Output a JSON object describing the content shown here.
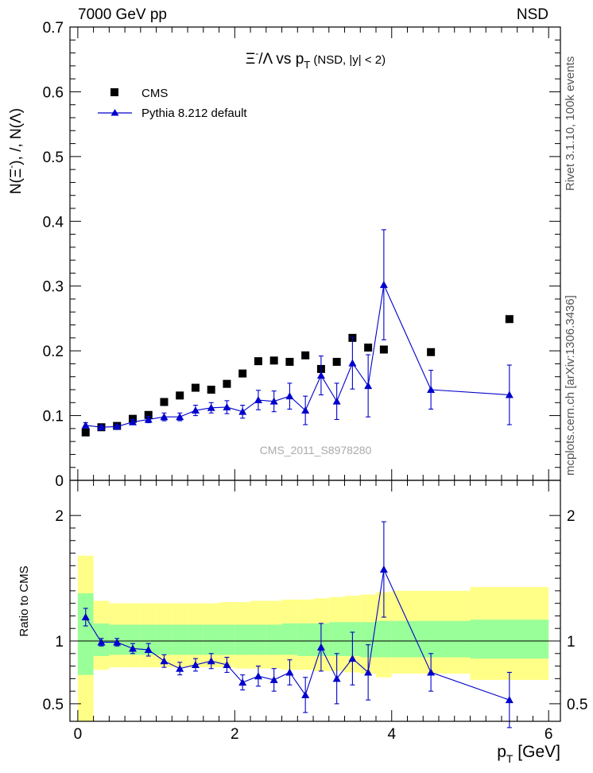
{
  "header": {
    "energy_label": "7000 GeV pp",
    "process_label": "NSD"
  },
  "side_labels": {
    "rivet": "Rivet 3.1.10,  100k events",
    "mcplots": "mcplots.cern.ch [arXiv:1306.3436]"
  },
  "watermark": "CMS_2011_S8978280",
  "colors": {
    "data": "#000000",
    "mc": "#0000cc",
    "band_inner": "#99ff99",
    "band_outer": "#ffff88"
  },
  "chart_data": [
    {
      "type": "scatter",
      "title": "Ξ⁻/Λ  vs p_T (NSD, |y| < 2)",
      "title_main": "Ξ",
      "title_sup": "-",
      "title_rest": "/Λ  vs p",
      "title_sub": "T",
      "title_tail": " (NSD, |y| < 2)",
      "ylabel": "N(Ξ⁻), /, N(Λ)",
      "ylabel_parts": [
        "N(Ξ",
        "-",
        "), /, N(Λ)"
      ],
      "xlim": [
        -0.1,
        6.15
      ],
      "ylim": [
        0,
        0.7
      ],
      "yticks": [
        0,
        0.1,
        0.2,
        0.3,
        0.4,
        0.5,
        0.6,
        0.7
      ],
      "ytick_labels": [
        "0",
        "0.1",
        "0.2",
        "0.3",
        "0.4",
        "0.5",
        "0.6",
        "0.7"
      ],
      "legend": {
        "placement": "top-left",
        "entries": [
          "CMS",
          "Pythia 8.212 default"
        ]
      },
      "series": [
        {
          "name": "CMS",
          "marker": "square",
          "x": [
            0.1,
            0.3,
            0.5,
            0.7,
            0.9,
            1.1,
            1.3,
            1.5,
            1.7,
            1.9,
            2.1,
            2.3,
            2.5,
            2.7,
            2.9,
            3.1,
            3.3,
            3.5,
            3.7,
            3.9,
            4.5,
            5.5
          ],
          "y": [
            0.074,
            0.082,
            0.084,
            0.095,
            0.101,
            0.121,
            0.131,
            0.143,
            0.14,
            0.149,
            0.165,
            0.184,
            0.185,
            0.183,
            0.193,
            0.172,
            0.183,
            0.22,
            0.205,
            0.202,
            0.198,
            0.249
          ]
        },
        {
          "name": "Pythia 8.212 default",
          "marker": "triangle",
          "x": [
            0.1,
            0.3,
            0.5,
            0.7,
            0.9,
            1.1,
            1.3,
            1.5,
            1.7,
            1.9,
            2.1,
            2.3,
            2.5,
            2.7,
            2.9,
            3.1,
            3.3,
            3.5,
            3.7,
            3.9,
            4.5,
            5.5
          ],
          "y": [
            0.085,
            0.082,
            0.083,
            0.09,
            0.094,
            0.098,
            0.098,
            0.108,
            0.112,
            0.113,
            0.106,
            0.124,
            0.122,
            0.13,
            0.108,
            0.162,
            0.122,
            0.181,
            0.146,
            0.302,
            0.14,
            0.132
          ],
          "yerr": [
            0.004,
            0.003,
            0.003,
            0.004,
            0.005,
            0.006,
            0.006,
            0.008,
            0.008,
            0.01,
            0.01,
            0.015,
            0.016,
            0.02,
            0.022,
            0.03,
            0.028,
            0.04,
            0.048,
            0.085,
            0.03,
            0.046
          ]
        }
      ]
    },
    {
      "type": "scatter",
      "ylabel": "Ratio to CMS",
      "xlabel": "p_T [GeV]",
      "xlabel_main": "p",
      "xlabel_sub": "T",
      "xlabel_tail": " [GeV]",
      "xlim": [
        -0.1,
        6.15
      ],
      "ylim": [
        0.36,
        2.28
      ],
      "xticks": [
        0,
        2,
        4,
        6
      ],
      "xtick_labels": [
        "0",
        "2",
        "4",
        "6"
      ],
      "yticks": [
        0.5,
        1,
        2
      ],
      "ytick_labels": [
        "0.5",
        "1",
        "2"
      ],
      "bands": {
        "edges": [
          0.0,
          0.2,
          0.4,
          0.6,
          0.8,
          1.0,
          1.2,
          1.4,
          1.6,
          1.8,
          2.0,
          2.2,
          2.4,
          2.6,
          2.8,
          3.0,
          3.2,
          3.4,
          3.6,
          3.8,
          4.0,
          5.0,
          6.0
        ],
        "inner_lo": [
          0.73,
          0.88,
          0.89,
          0.89,
          0.89,
          0.89,
          0.89,
          0.89,
          0.89,
          0.89,
          0.89,
          0.89,
          0.89,
          0.89,
          0.88,
          0.88,
          0.88,
          0.88,
          0.87,
          0.87,
          0.87,
          0.86
        ],
        "inner_hi": [
          1.38,
          1.14,
          1.13,
          1.13,
          1.13,
          1.13,
          1.13,
          1.13,
          1.13,
          1.13,
          1.13,
          1.13,
          1.13,
          1.14,
          1.14,
          1.14,
          1.15,
          1.15,
          1.15,
          1.16,
          1.16,
          1.17
        ],
        "outer_lo": [
          0.36,
          0.77,
          0.79,
          0.79,
          0.79,
          0.79,
          0.79,
          0.79,
          0.79,
          0.79,
          0.78,
          0.78,
          0.78,
          0.77,
          0.77,
          0.76,
          0.76,
          0.75,
          0.74,
          0.71,
          0.74,
          0.69
        ],
        "outer_hi": [
          1.68,
          1.32,
          1.3,
          1.3,
          1.3,
          1.3,
          1.3,
          1.3,
          1.3,
          1.31,
          1.31,
          1.32,
          1.32,
          1.33,
          1.33,
          1.34,
          1.35,
          1.36,
          1.37,
          1.39,
          1.4,
          1.43
        ]
      },
      "series": [
        {
          "name": "Pythia 8.212 default / CMS",
          "x": [
            0.1,
            0.3,
            0.5,
            0.7,
            0.9,
            1.1,
            1.3,
            1.5,
            1.7,
            1.9,
            2.1,
            2.3,
            2.5,
            2.7,
            2.9,
            3.1,
            3.3,
            3.5,
            3.7,
            3.9,
            4.5,
            5.5
          ],
          "y": [
            1.19,
            0.99,
            0.99,
            0.94,
            0.93,
            0.84,
            0.78,
            0.81,
            0.84,
            0.81,
            0.67,
            0.72,
            0.69,
            0.75,
            0.57,
            0.95,
            0.7,
            0.86,
            0.75,
            1.57,
            0.75,
            0.53
          ],
          "yerr": [
            0.07,
            0.03,
            0.03,
            0.04,
            0.05,
            0.05,
            0.05,
            0.05,
            0.06,
            0.06,
            0.06,
            0.08,
            0.09,
            0.1,
            0.14,
            0.19,
            0.2,
            0.21,
            0.22,
            0.38,
            0.15,
            0.22
          ]
        }
      ]
    }
  ]
}
